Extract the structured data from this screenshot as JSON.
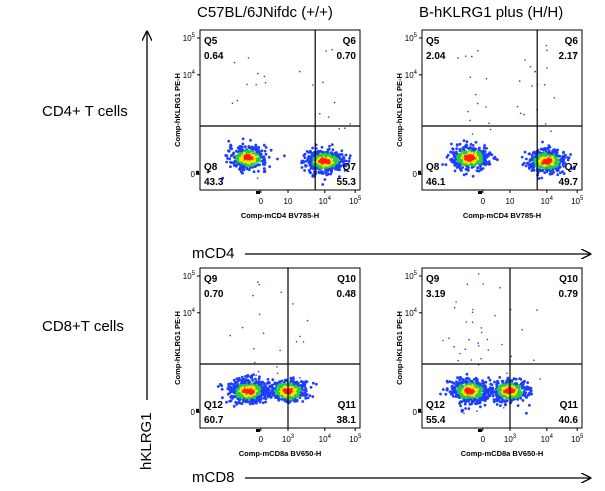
{
  "column_titles": [
    "C57BL/6JNifdc (+/+)",
    "B-hKLRG1 plus (H/H)"
  ],
  "row_labels": [
    "CD4+ T cells",
    "CD8+T cells"
  ],
  "big_axes": {
    "x_top": "mCD4",
    "x_bottom": "mCD8",
    "y": "hKLRG1"
  },
  "colors": {
    "density_low": "#1f3dff",
    "density_mid": "#20d040",
    "density_high": "#ffe000",
    "density_peak": "#ff2000"
  },
  "chart_data": [
    {
      "type": "scatter",
      "row": 0,
      "col": 0,
      "xlabel": "Comp-mCD4 BV785-H",
      "ylabel": "Comp-hKLRG1 PE-H",
      "xticks": [
        "0",
        "10",
        "10",
        "10"
      ],
      "xtick_exp": [
        "",
        "",
        "4",
        "5"
      ],
      "yticks": [
        "0",
        "10",
        "10"
      ],
      "ytick_exp": [
        "",
        "4",
        "5"
      ],
      "quadrants": [
        {
          "name": "Q5",
          "value": "0.64"
        },
        {
          "name": "Q6",
          "value": "0.70"
        },
        {
          "name": "Q8",
          "value": "43.3"
        },
        {
          "name": "Q7",
          "value": "55.3"
        }
      ],
      "populations": [
        {
          "x": 0.3,
          "y": 0.2,
          "weight": 0.43
        },
        {
          "x": 0.78,
          "y": 0.18,
          "weight": 0.55
        },
        {
          "x": 0.77,
          "y": 0.55,
          "weight": 0.007
        },
        {
          "x": 0.3,
          "y": 0.55,
          "weight": 0.006
        }
      ]
    },
    {
      "type": "scatter",
      "row": 0,
      "col": 1,
      "xlabel": "Comp-mCD4 BV785-H",
      "ylabel": "Comp-hKLRG1 PE-H",
      "xticks": [
        "0",
        "10",
        "10",
        "10"
      ],
      "xtick_exp": [
        "",
        "",
        "4",
        "5"
      ],
      "yticks": [
        "0",
        "10",
        "10"
      ],
      "ytick_exp": [
        "",
        "4",
        "5"
      ],
      "quadrants": [
        {
          "name": "Q5",
          "value": "2.04"
        },
        {
          "name": "Q6",
          "value": "2.17"
        },
        {
          "name": "Q8",
          "value": "46.1"
        },
        {
          "name": "Q7",
          "value": "49.7"
        }
      ],
      "populations": [
        {
          "x": 0.3,
          "y": 0.2,
          "weight": 0.46
        },
        {
          "x": 0.78,
          "y": 0.18,
          "weight": 0.5
        },
        {
          "x": 0.77,
          "y": 0.62,
          "weight": 0.022
        },
        {
          "x": 0.3,
          "y": 0.6,
          "weight": 0.02
        }
      ]
    },
    {
      "type": "scatter",
      "row": 1,
      "col": 0,
      "xlabel": "Comp-mCD8a BV650-H",
      "ylabel": "Comp-hKLRG1 PE-H",
      "xticks": [
        "0",
        "10",
        "10",
        "10"
      ],
      "xtick_exp": [
        "",
        "3",
        "4",
        "5"
      ],
      "yticks": [
        "0",
        "10",
        "10"
      ],
      "ytick_exp": [
        "",
        "4",
        "5"
      ],
      "quadrants": [
        {
          "name": "Q9",
          "value": "0.70"
        },
        {
          "name": "Q10",
          "value": "0.48"
        },
        {
          "name": "Q12",
          "value": "60.7"
        },
        {
          "name": "Q11",
          "value": "38.1"
        }
      ],
      "populations": [
        {
          "x": 0.3,
          "y": 0.23,
          "weight": 0.6
        },
        {
          "x": 0.55,
          "y": 0.23,
          "weight": 0.38
        },
        {
          "x": 0.33,
          "y": 0.55,
          "weight": 0.007
        },
        {
          "x": 0.58,
          "y": 0.55,
          "weight": 0.005
        }
      ]
    },
    {
      "type": "scatter",
      "row": 1,
      "col": 1,
      "xlabel": "Comp-mCD8a BV650-H",
      "ylabel": "Comp-hKLRG1 PE-H",
      "xticks": [
        "0",
        "10",
        "10",
        "10"
      ],
      "xtick_exp": [
        "",
        "3",
        "4",
        "5"
      ],
      "yticks": [
        "0",
        "10",
        "10"
      ],
      "ytick_exp": [
        "",
        "4",
        "5"
      ],
      "quadrants": [
        {
          "name": "Q9",
          "value": "3.19"
        },
        {
          "name": "Q10",
          "value": "0.79"
        },
        {
          "name": "Q12",
          "value": "55.4"
        },
        {
          "name": "Q11",
          "value": "40.6"
        }
      ],
      "populations": [
        {
          "x": 0.3,
          "y": 0.23,
          "weight": 0.55
        },
        {
          "x": 0.55,
          "y": 0.23,
          "weight": 0.41
        },
        {
          "x": 0.32,
          "y": 0.68,
          "weight": 0.032
        },
        {
          "x": 0.58,
          "y": 0.55,
          "weight": 0.008
        }
      ]
    }
  ]
}
